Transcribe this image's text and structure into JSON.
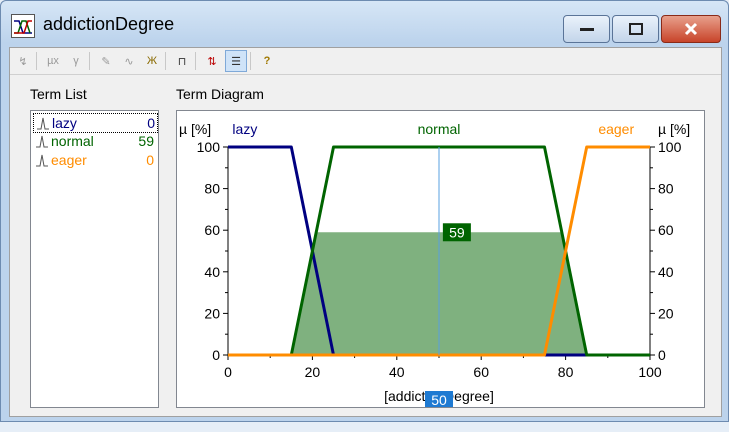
{
  "window": {
    "title": "addictionDegree",
    "icon": "fuzzy-variable-icon"
  },
  "toolbar": {
    "items": [
      "select-icon",
      "mu-x-icon",
      "gamma-icon",
      "pencil-icon",
      "wave-icon",
      "cross-terms-icon",
      "range-icon",
      "swap-icon",
      "list-view-icon",
      "help-icon"
    ]
  },
  "labels": {
    "term_list": "Term List",
    "term_diagram": "Term Diagram"
  },
  "terms": [
    {
      "name": "lazy",
      "value": "0",
      "color": "#000080",
      "selected": true
    },
    {
      "name": "normal",
      "value": "59",
      "color": "#006400",
      "selected": false
    },
    {
      "name": "eager",
      "value": "0",
      "color": "#ff8c00",
      "selected": false
    }
  ],
  "chart_data": {
    "type": "line",
    "ylabel_left": "µ [%]",
    "ylabel_right": "µ [%]",
    "xlabel": "[addictionDegree]",
    "xlim": [
      0,
      100
    ],
    "ylim": [
      0,
      100
    ],
    "x_ticks": [
      0,
      20,
      40,
      60,
      80,
      100
    ],
    "y_ticks": [
      0,
      20,
      40,
      60,
      80,
      100
    ],
    "series": [
      {
        "name": "lazy",
        "color": "#000080",
        "points": [
          [
            0,
            100
          ],
          [
            15,
            100
          ],
          [
            25,
            0
          ],
          [
            100,
            0
          ]
        ]
      },
      {
        "name": "normal",
        "color": "#006400",
        "points": [
          [
            0,
            0
          ],
          [
            15,
            0
          ],
          [
            25,
            100
          ],
          [
            75,
            100
          ],
          [
            85,
            0
          ],
          [
            100,
            0
          ]
        ]
      },
      {
        "name": "eager",
        "color": "#ff8c00",
        "points": [
          [
            0,
            0
          ],
          [
            75,
            0
          ],
          [
            85,
            100
          ],
          [
            100,
            100
          ]
        ]
      }
    ],
    "activation": {
      "term": "normal",
      "level": 59,
      "label": "59"
    },
    "cursor": {
      "x": 50,
      "label": "50"
    }
  }
}
